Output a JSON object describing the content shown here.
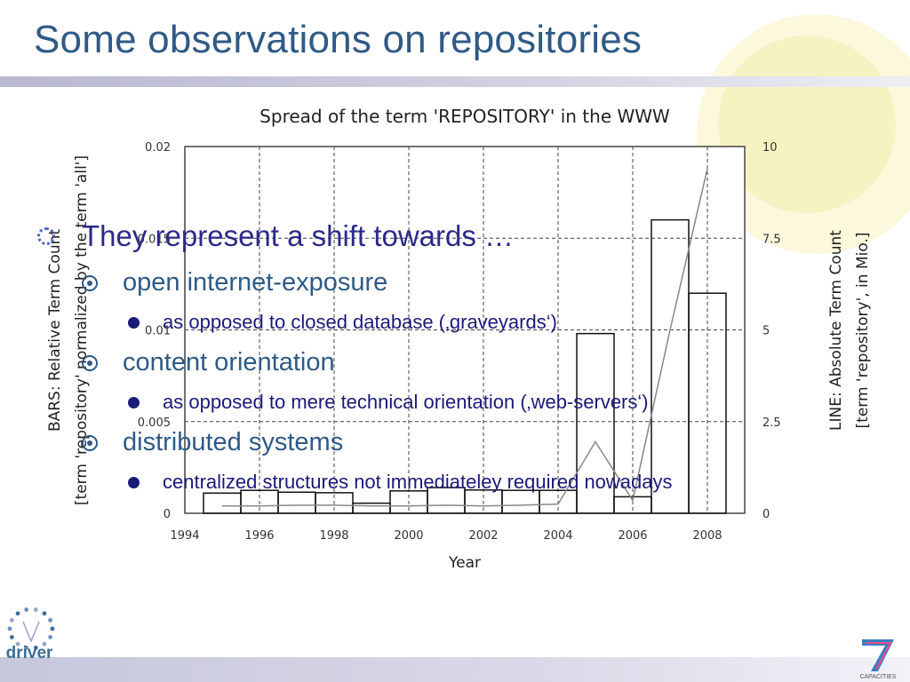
{
  "slide": {
    "title": "Some observations on repositories"
  },
  "bullets": {
    "main": "They represent a shift towards …",
    "items": [
      {
        "label": "open internet-exposure",
        "sub": "as opposed to closed database (‚graveyards‘)"
      },
      {
        "label": "content orientation",
        "sub": "as opposed to mere technical orientation (‚web-servers‘)"
      },
      {
        "label": "distributed systems",
        "sub": "centralized structures not immediateley required nowadays"
      }
    ]
  },
  "logos": {
    "driver": "driver",
    "fp7": "CAPACITIES"
  },
  "colors": {
    "title": "#2f5a86",
    "bullet_level1": "#2b2a8a",
    "bullet_level2": "#2f5a86",
    "bullet_level3": "#1c1a78",
    "grid": "#444444",
    "bars": "#111111",
    "line": "#888888"
  },
  "chart_data": {
    "type": "bar",
    "title": "Spread of the term 'REPOSITORY' in the WWW",
    "xlabel": "Year",
    "ylabel_left": "BARS: Relative Term Count",
    "ylabel_left_sub": "[term 'repository' normalized by the term 'all']",
    "ylabel_right": "LINE: Absolute Term Count",
    "ylabel_right_sub": "[term 'repository', in Mio.]",
    "x_range": [
      1994,
      2009
    ],
    "x_ticks": [
      "1994",
      "1996",
      "1998",
      "2000",
      "2002",
      "2004",
      "2006",
      "2008"
    ],
    "y_left_range": [
      0,
      0.02
    ],
    "y_left_ticks": [
      "0",
      "0.005",
      "0.01",
      "0.015",
      "0.02"
    ],
    "y_right_range": [
      0,
      10
    ],
    "y_right_ticks": [
      "0",
      "2.5",
      "5",
      "7.5",
      "10"
    ],
    "grid": true,
    "series": [
      {
        "name": "BARS: Relative Term Count",
        "type": "bar",
        "x": [
          1995,
          1996,
          1997,
          1998,
          1999,
          2000,
          2001,
          2002,
          2003,
          2004,
          2005,
          2006,
          2007,
          2008
        ],
        "values": [
          0.0011,
          0.00125,
          0.00115,
          0.00112,
          0.00055,
          0.00122,
          0.0014,
          0.00127,
          0.00125,
          0.00125,
          0.0098,
          0.0009,
          0.016,
          0.012
        ]
      },
      {
        "name": "LINE: Absolute Term Count",
        "type": "line",
        "x": [
          1995,
          1996,
          1997,
          1998,
          1999,
          2000,
          2001,
          2002,
          2003,
          2004,
          2005,
          2006,
          2007,
          2008
        ],
        "values": [
          0.2,
          0.2,
          0.22,
          0.22,
          0.2,
          0.2,
          0.22,
          0.2,
          0.22,
          0.25,
          1.95,
          0.35,
          5.0,
          9.4
        ]
      }
    ]
  }
}
